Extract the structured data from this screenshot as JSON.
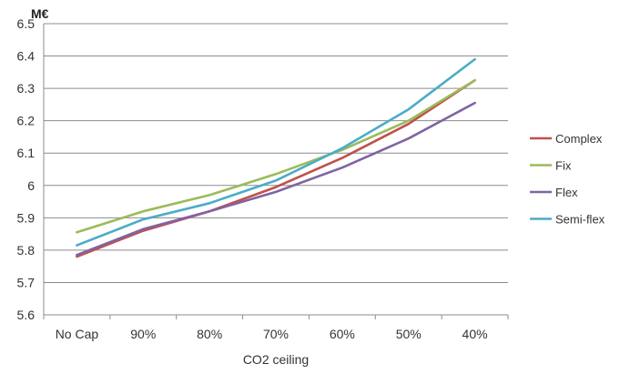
{
  "chart_data": {
    "type": "line",
    "title": "",
    "unit_label": "M€",
    "xlabel": "CO2 ceiling",
    "ylabel": "",
    "categories": [
      "No Cap",
      "90%",
      "80%",
      "70%",
      "60%",
      "50%",
      "40%"
    ],
    "ylim": [
      5.6,
      6.5
    ],
    "yticks": [
      "5.6",
      "5.7",
      "5.8",
      "5.9",
      "6",
      "6.1",
      "6.2",
      "6.3",
      "6.4",
      "6.5"
    ],
    "grid": "horizontal",
    "legend_position": "right",
    "series": [
      {
        "name": "Complex",
        "color": "#c0504d",
        "values": [
          5.78,
          5.86,
          5.92,
          5.995,
          6.085,
          6.19,
          6.325
        ]
      },
      {
        "name": "Fix",
        "color": "#9bbb59",
        "values": [
          5.855,
          5.92,
          5.97,
          6.035,
          6.11,
          6.2,
          6.325
        ]
      },
      {
        "name": "Flex",
        "color": "#8064a2",
        "values": [
          5.785,
          5.865,
          5.92,
          5.98,
          6.055,
          6.145,
          6.255
        ]
      },
      {
        "name": "Semi-flex",
        "color": "#4bacc6",
        "values": [
          5.815,
          5.895,
          5.945,
          6.015,
          6.115,
          6.235,
          6.39
        ]
      }
    ]
  }
}
